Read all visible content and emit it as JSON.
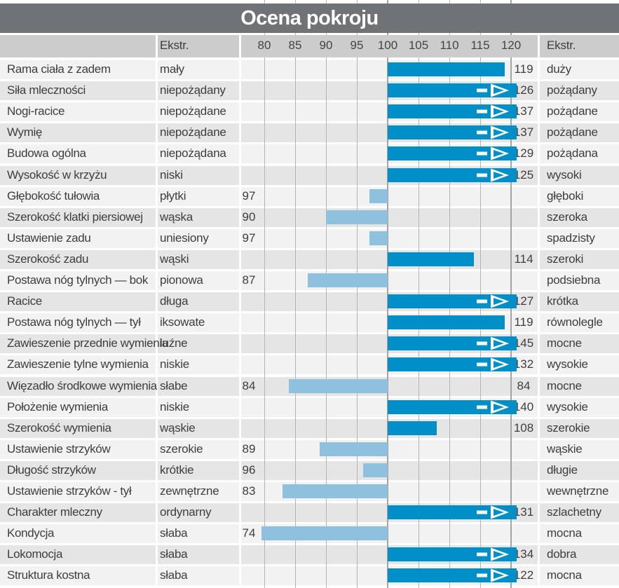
{
  "title": "Ocena pokroju",
  "header": {
    "left_extreme_label": "Ekstr.",
    "right_extreme_label": "Ekstr."
  },
  "colors": {
    "title_band": "#6f7376",
    "header_strip": "#cccccc",
    "row_light": "#f2f2f2",
    "row_dark": "#e5e5e5",
    "bar_high": "#008fc6",
    "bar_low": "#8ec1dd",
    "gridline": "#b5b5b5",
    "gridline_major": "#a4a4a4",
    "text": "#3e3e3e"
  },
  "chart_data": {
    "type": "bar",
    "orientation": "horizontal",
    "title": "Ocena pokroju",
    "axis": {
      "min": 80,
      "max": 120,
      "baseline": 100,
      "ticks": [
        80,
        85,
        90,
        95,
        100,
        105,
        110,
        115,
        120
      ],
      "overflow_arrow_above": 120
    },
    "legend": "none",
    "grid": "vertical",
    "rows": [
      {
        "label": "Rama ciała z zadem",
        "left_extreme": "mały",
        "right_extreme": "duży",
        "value": 119,
        "value_left": "",
        "value_right": "119",
        "arrow": false
      },
      {
        "label": "Siła mleczności",
        "left_extreme": "niepożądany",
        "right_extreme": "pożądany",
        "value": 126,
        "value_left": "",
        "value_right": "126",
        "arrow": true
      },
      {
        "label": "Nogi-racice",
        "left_extreme": "niepożądane",
        "right_extreme": "pożądane",
        "value": 137,
        "value_left": "",
        "value_right": "137",
        "arrow": true
      },
      {
        "label": "Wymię",
        "left_extreme": "niepożądane",
        "right_extreme": "pożądane",
        "value": 137,
        "value_left": "",
        "value_right": "137",
        "arrow": true
      },
      {
        "label": "Budowa ogólna",
        "left_extreme": "niepożądana",
        "right_extreme": "pożądana",
        "value": 129,
        "value_left": "",
        "value_right": "129",
        "arrow": true
      },
      {
        "label": "Wysokość w krzyżu",
        "left_extreme": "niski",
        "right_extreme": "wysoki",
        "value": 125,
        "value_left": "",
        "value_right": "125",
        "arrow": true
      },
      {
        "label": "Głębokość tułowia",
        "left_extreme": "płytki",
        "right_extreme": "głęboki",
        "value": 97,
        "value_left": "97",
        "value_right": "",
        "arrow": false
      },
      {
        "label": "Szerokość klatki piersiowej",
        "left_extreme": "wąska",
        "right_extreme": "szeroka",
        "value": 90,
        "value_left": "90",
        "value_right": "",
        "arrow": false
      },
      {
        "label": "Ustawienie zadu",
        "left_extreme": "uniesiony",
        "right_extreme": "spadzisty",
        "value": 97,
        "value_left": "97",
        "value_right": "",
        "arrow": false
      },
      {
        "label": "Szerokość zadu",
        "left_extreme": "wąski",
        "right_extreme": "szeroki",
        "value": 114,
        "value_left": "",
        "value_right": "114",
        "arrow": false
      },
      {
        "label": "Postawa nóg tylnych — bok",
        "left_extreme": "pionowa",
        "right_extreme": "podsiebna",
        "value": 87,
        "value_left": "87",
        "value_right": "",
        "arrow": false
      },
      {
        "label": "Racice",
        "left_extreme": "długa",
        "right_extreme": "krótka",
        "value": 127,
        "value_left": "",
        "value_right": "127",
        "arrow": true
      },
      {
        "label": "Postawa nóg tylnych — tył",
        "left_extreme": "iksowate",
        "right_extreme": "równolegle",
        "value": 119,
        "value_left": "",
        "value_right": "119",
        "arrow": false
      },
      {
        "label": "Zawieszenie przednie wymienia",
        "left_extreme": "luźne",
        "right_extreme": "mocne",
        "value": 145,
        "value_left": "",
        "value_right": "145",
        "arrow": true
      },
      {
        "label": "Zawieszenie tylne wymienia",
        "left_extreme": "niskie",
        "right_extreme": "wysokie",
        "value": 132,
        "value_left": "",
        "value_right": "132",
        "arrow": true
      },
      {
        "label": "Więzadło środkowe wymienia",
        "left_extreme": "słabe",
        "right_extreme": "mocne",
        "value": 84,
        "value_left": "84",
        "value_right": "84",
        "arrow": false
      },
      {
        "label": "Położenie wymienia",
        "left_extreme": "niskie",
        "right_extreme": "wysokie",
        "value": 140,
        "value_left": "",
        "value_right": "140",
        "arrow": true
      },
      {
        "label": "Szerokość wymienia",
        "left_extreme": "wąskie",
        "right_extreme": "szerokie",
        "value": 108,
        "value_left": "",
        "value_right": "108",
        "arrow": false
      },
      {
        "label": "Ustawienie strzyków",
        "left_extreme": "szerokie",
        "right_extreme": "wąskie",
        "value": 89,
        "value_left": "89",
        "value_right": "",
        "arrow": false
      },
      {
        "label": "Długość strzyków",
        "left_extreme": "krótkie",
        "right_extreme": "długie",
        "value": 96,
        "value_left": "96",
        "value_right": "",
        "arrow": false
      },
      {
        "label": "Ustawienie strzyków - tył",
        "left_extreme": "zewnętrzne",
        "right_extreme": "wewnętrzne",
        "value": 83,
        "value_left": "83",
        "value_right": "",
        "arrow": false
      },
      {
        "label": "Charakter mleczny",
        "left_extreme": "ordynarny",
        "right_extreme": "szlachetny",
        "value": 131,
        "value_left": "",
        "value_right": "131",
        "arrow": true
      },
      {
        "label": "Kondycja",
        "left_extreme": "słaba",
        "right_extreme": "mocna",
        "value": 74,
        "value_left": "74",
        "value_right": "",
        "arrow": false
      },
      {
        "label": "Lokomocja",
        "left_extreme": "słaba",
        "right_extreme": "dobra",
        "value": 134,
        "value_left": "",
        "value_right": "134",
        "arrow": true
      },
      {
        "label": "Struktura kostna",
        "left_extreme": "słaba",
        "right_extreme": "mocna",
        "value": 122,
        "value_left": "",
        "value_right": "122",
        "arrow": true
      }
    ]
  }
}
